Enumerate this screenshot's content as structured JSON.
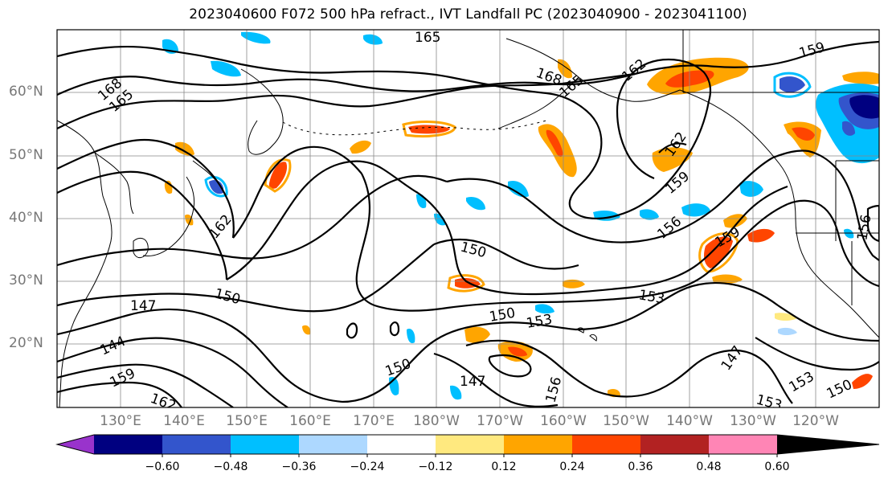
{
  "title": "2023040600 F072 500 hPa refract., IVT Landfall PC (2023040900 - 2023041100)",
  "lat_labels": [
    "60°N",
    "50°N",
    "40°N",
    "30°N",
    "20°N"
  ],
  "lon_labels": [
    "130°E",
    "140°E",
    "150°E",
    "160°E",
    "170°E",
    "180°W",
    "170°W",
    "160°W",
    "150°W",
    "140°W",
    "130°W",
    "120°W"
  ],
  "colorbar": {
    "ticks": [
      "−0.60",
      "−0.48",
      "−0.36",
      "−0.24",
      "−0.12",
      "0.12",
      "0.24",
      "0.36",
      "0.48",
      "0.60"
    ],
    "colors": [
      "#9933cc",
      "#000080",
      "#3355cc",
      "#00bfff",
      "#add8ff",
      "#ffffff",
      "#ffe97f",
      "#ffa500",
      "#ff4500",
      "#b22222",
      "#ff85b5"
    ]
  },
  "contour_labels": [
    "165",
    "168",
    "165",
    "168",
    "165",
    "162",
    "159",
    "162",
    "159",
    "156",
    "159",
    "162",
    "150",
    "150",
    "147",
    "144",
    "159",
    "162",
    "150",
    "153",
    "153",
    "150",
    "147",
    "156",
    "147",
    "153",
    "153",
    "150",
    "156"
  ],
  "colors": {
    "contour": "#000000",
    "gridline": "#888888",
    "coastline": "#000000"
  }
}
